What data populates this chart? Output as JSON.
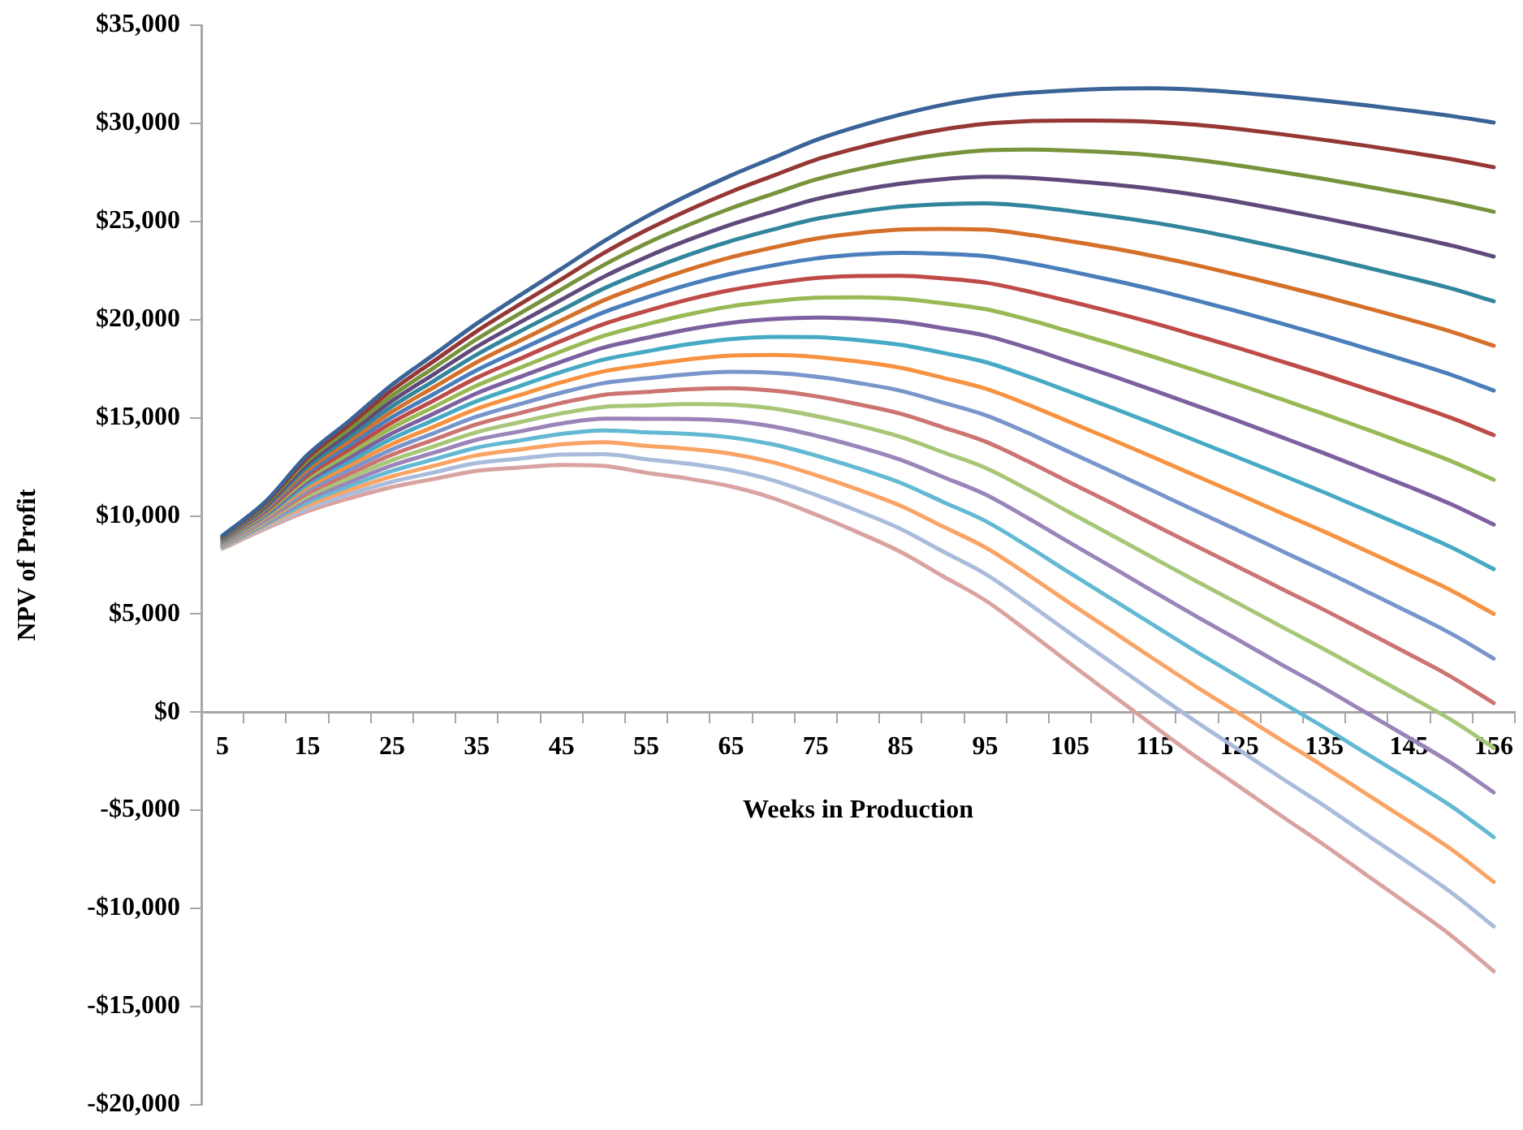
{
  "chart_data": {
    "type": "line",
    "xlabel": "Weeks in Production",
    "ylabel": "NPV of Profit",
    "categories": [
      "5",
      null,
      "15",
      null,
      "25",
      null,
      "35",
      null,
      "45",
      null,
      "55",
      null,
      "65",
      null,
      "75",
      null,
      "85",
      null,
      "95",
      null,
      "105",
      null,
      "115",
      null,
      "125",
      null,
      "135",
      null,
      "145",
      null,
      "156"
    ],
    "ylim": [
      -20000,
      35000
    ],
    "yticks": [
      {
        "value": -20000,
        "label": "-$20,000"
      },
      {
        "value": -15000,
        "label": "-$15,000"
      },
      {
        "value": -10000,
        "label": "-$10,000"
      },
      {
        "value": -5000,
        "label": "-$5,000"
      },
      {
        "value": 0,
        "label": "$0"
      },
      {
        "value": 5000,
        "label": "$5,000"
      },
      {
        "value": 10000,
        "label": "$10,000"
      },
      {
        "value": 15000,
        "label": "$15,000"
      },
      {
        "value": 20000,
        "label": "$20,000"
      },
      {
        "value": 25000,
        "label": "$25,000"
      },
      {
        "value": 30000,
        "label": "$30,000"
      },
      {
        "value": 35000,
        "label": "$35,000"
      }
    ],
    "grid": false,
    "legend": false,
    "series": [
      {
        "color": "#3a6397",
        "values": [
          9000,
          10700,
          13100,
          14860,
          16680,
          18240,
          19800,
          21220,
          22600,
          24000,
          25250,
          26350,
          27350,
          28250,
          29150,
          29850,
          30450,
          30950,
          31330,
          31560,
          31690,
          31770,
          31790,
          31720,
          31570,
          31380,
          31160,
          30920,
          30660,
          30380,
          30050
        ]
      },
      {
        "color": "#953735",
        "values": [
          8970,
          10630,
          12950,
          14650,
          16410,
          17910,
          19410,
          20760,
          22070,
          23400,
          24560,
          25590,
          26520,
          27340,
          28150,
          28760,
          29280,
          29690,
          29980,
          30120,
          30150,
          30140,
          30080,
          29930,
          29710,
          29450,
          29160,
          28860,
          28530,
          28180,
          27770
        ]
      },
      {
        "color": "#77933c",
        "values": [
          8930,
          10560,
          12800,
          14440,
          16130,
          17570,
          19010,
          20300,
          21550,
          22790,
          23880,
          24830,
          25680,
          26420,
          27140,
          27670,
          28100,
          28420,
          28630,
          28670,
          28620,
          28520,
          28370,
          28140,
          27850,
          27520,
          27170,
          26790,
          26400,
          25980,
          25500
        ]
      },
      {
        "color": "#604a7b",
        "values": [
          8900,
          10480,
          12650,
          14230,
          15860,
          17240,
          18620,
          19840,
          21020,
          22190,
          23190,
          24070,
          24850,
          25510,
          26140,
          26580,
          26930,
          27160,
          27280,
          27230,
          27080,
          26890,
          26650,
          26350,
          25990,
          25590,
          25170,
          24730,
          24270,
          23780,
          23220
        ]
      },
      {
        "color": "#31859c",
        "values": [
          8860,
          10410,
          12500,
          14030,
          15580,
          16900,
          18220,
          19380,
          20490,
          21590,
          22500,
          23310,
          24010,
          24600,
          25130,
          25490,
          25760,
          25890,
          25930,
          25790,
          25540,
          25260,
          24940,
          24560,
          24120,
          23660,
          23170,
          22660,
          22140,
          21590,
          20940
        ]
      },
      {
        "color": "#d5702a",
        "values": [
          8830,
          10340,
          12340,
          13820,
          15310,
          16570,
          17830,
          18910,
          19970,
          20990,
          21820,
          22550,
          23180,
          23680,
          24130,
          24410,
          24590,
          24630,
          24590,
          24340,
          24000,
          23640,
          23230,
          22770,
          22260,
          21730,
          21180,
          20600,
          20010,
          19390,
          18670
        ]
      },
      {
        "color": "#4a7ebb",
        "values": [
          8790,
          10270,
          12190,
          13610,
          15030,
          16230,
          17430,
          18450,
          19440,
          20380,
          21130,
          21790,
          22340,
          22770,
          23120,
          23320,
          23410,
          23360,
          23240,
          22900,
          22470,
          22010,
          21520,
          20970,
          20400,
          19800,
          19180,
          18530,
          17880,
          17190,
          16390
        ]
      },
      {
        "color": "#be4b48",
        "values": [
          8760,
          10200,
          12040,
          13400,
          14760,
          15900,
          17040,
          17990,
          18920,
          19780,
          20440,
          21030,
          21510,
          21860,
          22120,
          22230,
          22240,
          22100,
          21890,
          21450,
          20930,
          20390,
          19810,
          19180,
          18540,
          17870,
          17190,
          16470,
          15750,
          14990,
          14120
        ]
      },
      {
        "color": "#98b954",
        "values": [
          8720,
          10120,
          11890,
          13190,
          14490,
          15570,
          16640,
          17530,
          18390,
          19180,
          19760,
          20270,
          20680,
          20940,
          21120,
          21140,
          21070,
          20840,
          20540,
          20010,
          19390,
          18760,
          18090,
          17390,
          16680,
          15940,
          15190,
          14410,
          13620,
          12790,
          11840
        ]
      },
      {
        "color": "#7d60a0",
        "values": [
          8690,
          10050,
          11740,
          12980,
          14210,
          15230,
          16250,
          17070,
          17860,
          18580,
          19070,
          19510,
          19840,
          20030,
          20110,
          20050,
          19900,
          19570,
          19190,
          18570,
          17850,
          17130,
          16380,
          15600,
          14820,
          14010,
          13190,
          12340,
          11490,
          10590,
          9560
        ]
      },
      {
        "color": "#46aac5",
        "values": [
          8650,
          9980,
          11590,
          12780,
          13940,
          14900,
          15850,
          16610,
          17340,
          17970,
          18380,
          18750,
          19010,
          19120,
          19110,
          18960,
          18720,
          18310,
          17840,
          17120,
          16320,
          15510,
          14670,
          13810,
          12950,
          12080,
          11200,
          10280,
          9360,
          8400,
          7290
        ]
      },
      {
        "color": "#f69240",
        "values": [
          8620,
          9910,
          11440,
          12570,
          13660,
          14560,
          15460,
          16150,
          16810,
          17370,
          17700,
          17980,
          18170,
          18200,
          18100,
          17870,
          17550,
          17040,
          16490,
          15680,
          14780,
          13880,
          12960,
          12020,
          11090,
          10140,
          9200,
          8210,
          7220,
          6200,
          5010
        ]
      },
      {
        "color": "#7896cb",
        "values": [
          8580,
          9830,
          11290,
          12360,
          13390,
          14230,
          15060,
          15690,
          16280,
          16770,
          17010,
          17220,
          17340,
          17290,
          17100,
          16780,
          16380,
          15780,
          15140,
          14240,
          13240,
          12250,
          11240,
          10230,
          9230,
          8210,
          7200,
          6150,
          5090,
          4000,
          2730
        ]
      },
      {
        "color": "#cc7472",
        "values": [
          8550,
          9760,
          11140,
          12150,
          13120,
          13900,
          14670,
          15230,
          15760,
          16170,
          16320,
          16460,
          16510,
          16380,
          16100,
          15690,
          15210,
          14520,
          13790,
          12790,
          11700,
          10630,
          9530,
          8440,
          7370,
          6280,
          5210,
          4090,
          2960,
          1800,
          460
        ]
      },
      {
        "color": "#a8c677",
        "values": [
          8510,
          9690,
          10990,
          11940,
          12840,
          13560,
          14270,
          14770,
          15230,
          15560,
          15630,
          15700,
          15670,
          15470,
          15090,
          14610,
          14030,
          13250,
          12450,
          11350,
          10170,
          9000,
          7820,
          6650,
          5510,
          4350,
          3210,
          2020,
          830,
          -400,
          -1820
        ]
      },
      {
        "color": "#9a84b9",
        "values": [
          8480,
          9620,
          10830,
          11730,
          12570,
          13230,
          13880,
          14300,
          14710,
          14960,
          14950,
          14940,
          14840,
          14550,
          14090,
          13520,
          12860,
          11990,
          11100,
          9900,
          8630,
          7380,
          6110,
          4860,
          3650,
          2420,
          1220,
          -40,
          -1300,
          -2600,
          -4090
        ]
      },
      {
        "color": "#63b9d3",
        "values": [
          8440,
          9550,
          10680,
          11530,
          12290,
          12890,
          13480,
          13840,
          14180,
          14360,
          14260,
          14180,
          14000,
          13640,
          13080,
          12430,
          11690,
          10720,
          9750,
          8460,
          7090,
          5750,
          4400,
          3060,
          1780,
          490,
          -780,
          -2110,
          -3430,
          -4790,
          -6370
        ]
      },
      {
        "color": "#f9a465",
        "values": [
          8410,
          9470,
          10530,
          11320,
          12020,
          12560,
          13090,
          13380,
          13650,
          13760,
          13570,
          13420,
          13170,
          12730,
          12080,
          11340,
          10520,
          9460,
          8400,
          7020,
          5550,
          4120,
          2680,
          1270,
          -80,
          -1440,
          -2780,
          -4170,
          -5560,
          -6990,
          -8650
        ]
      },
      {
        "color": "#a9bcdc",
        "values": [
          8380,
          9400,
          10380,
          11110,
          11740,
          12220,
          12700,
          12920,
          13130,
          13150,
          12890,
          12660,
          12330,
          11810,
          11070,
          10250,
          9340,
          8190,
          7050,
          5570,
          4020,
          2500,
          970,
          -520,
          -1940,
          -3370,
          -4770,
          -6240,
          -7690,
          -9190,
          -10920
        ]
      },
      {
        "color": "#d9a3a2",
        "values": [
          8340,
          9330,
          10230,
          10900,
          11470,
          11890,
          12300,
          12460,
          12600,
          12550,
          12200,
          11900,
          11500,
          10900,
          10070,
          9160,
          8170,
          6930,
          5700,
          4130,
          2480,
          870,
          -740,
          -2310,
          -3800,
          -5300,
          -6770,
          -8300,
          -9820,
          -11390,
          -13200
        ]
      }
    ]
  }
}
